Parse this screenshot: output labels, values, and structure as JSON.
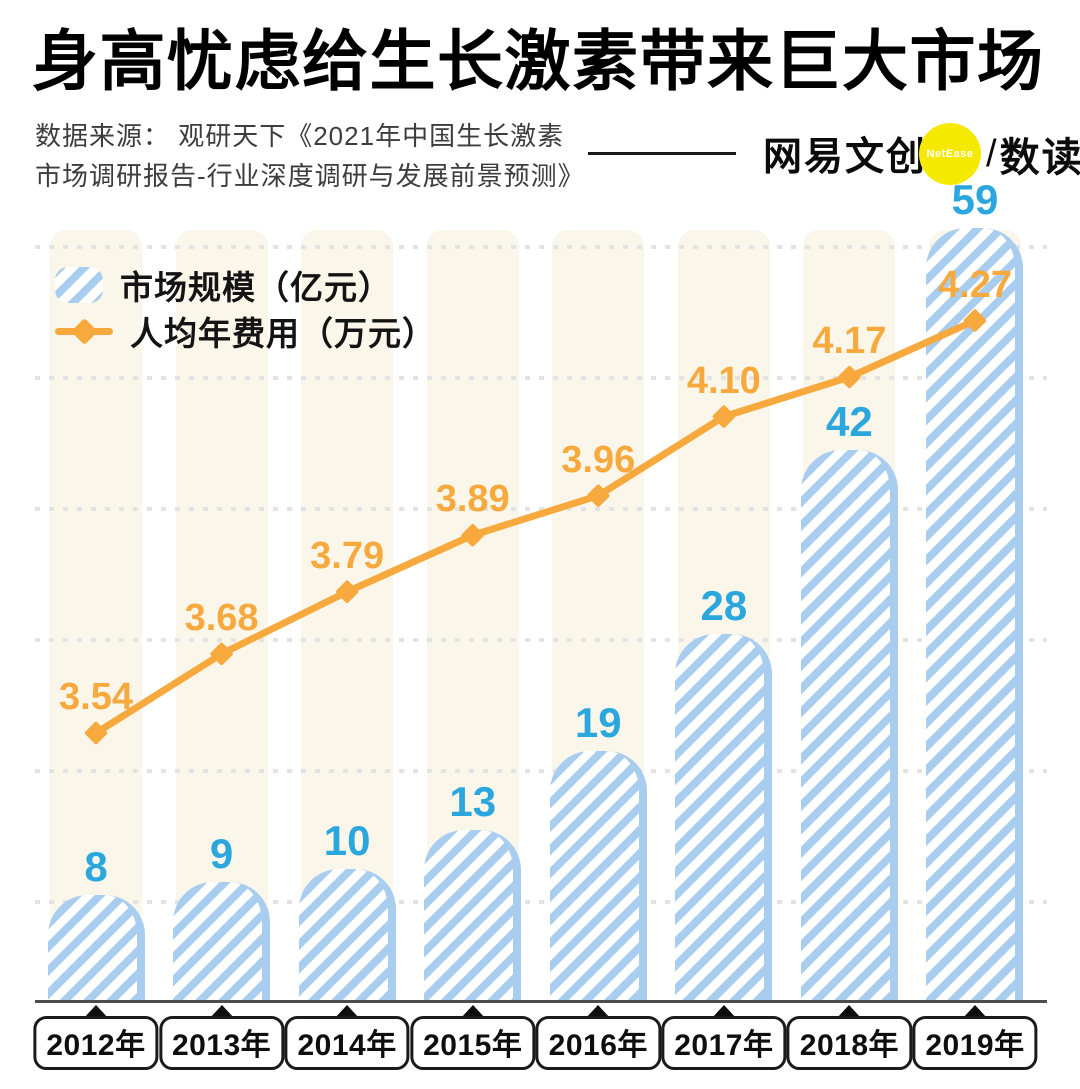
{
  "header": {
    "title": "身高忧虑给生长激素带来巨大市场",
    "source": {
      "line1": "数据来源： 观研天下《2021年中国生长激素",
      "line2": "市场调研报告-行业深度调研与发展前景预测》"
    },
    "logo": {
      "brand": "网易文创",
      "badge": "NetEase",
      "slash": "/",
      "product": "数读"
    }
  },
  "legend": {
    "market_label": "市场规模（亿元）",
    "fee_label": "人均年费用（万元）"
  },
  "chart_data": {
    "type": "bar",
    "categories": [
      "2012年",
      "2013年",
      "2014年",
      "2015年",
      "2016年",
      "2017年",
      "2018年",
      "2019年"
    ],
    "series": [
      {
        "name": "市场规模（亿元）",
        "type": "bar",
        "values": [
          8,
          9,
          10,
          13,
          19,
          28,
          42,
          59
        ]
      },
      {
        "name": "人均年费用（万元）",
        "type": "line",
        "values": [
          3.54,
          3.68,
          3.79,
          3.89,
          3.96,
          4.1,
          4.17,
          4.27
        ],
        "label_decimals": 2
      }
    ],
    "title": "身高忧虑给生长激素带来巨大市场",
    "xlabel": "",
    "ylabel": "",
    "grid": "horizontal-dotted",
    "legend_position": "top-left",
    "bar_axis_range": [
      0,
      59
    ],
    "line_axis_range": [
      3.54,
      4.27
    ]
  },
  "colors": {
    "bar_stripe": "#A9CDEF",
    "bar_value_label": "#2BA7DE",
    "line_orange": "#F7A93E",
    "column_background": "#FAF7EA",
    "gridline": "#E3E3E3",
    "axis": "#4D4D4D",
    "logo_yellow": "#F6E900"
  }
}
